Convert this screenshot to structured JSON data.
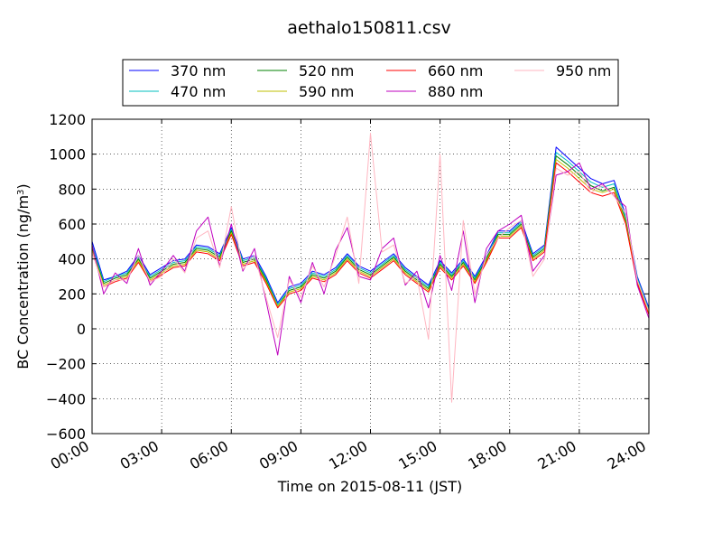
{
  "chart_data": {
    "type": "line",
    "title": "aethalo150811.csv",
    "xlabel": "Time on 2015-08-11 (JST)",
    "ylabel_main": "BC Concentration (ng/m",
    "ylabel_sup": "3",
    "ylabel_tail": ")",
    "xlim": [
      "00:00",
      "24:00"
    ],
    "ylim": [
      -600,
      1200
    ],
    "x_ticks": [
      "00:00",
      "03:00",
      "06:00",
      "09:00",
      "12:00",
      "15:00",
      "18:00",
      "21:00",
      "24:00"
    ],
    "y_ticks": [
      "−600",
      "−400",
      "−200",
      "0",
      "200",
      "400",
      "600",
      "800",
      "1000",
      "1200"
    ],
    "grid": true,
    "legend_position": "top",
    "x_hours": [
      0,
      0.5,
      1,
      1.5,
      2,
      2.5,
      3,
      3.5,
      4,
      4.5,
      5,
      5.5,
      6,
      6.5,
      7,
      7.5,
      8,
      8.5,
      9,
      9.5,
      10,
      10.5,
      11,
      11.5,
      12,
      12.5,
      13,
      13.5,
      14,
      14.5,
      15,
      15.5,
      16,
      16.5,
      17,
      17.5,
      18,
      18.5,
      19,
      19.5,
      20,
      20.5,
      21,
      21.5,
      22,
      22.5,
      23,
      23.5,
      24
    ],
    "series": [
      {
        "name": "370 nm",
        "color": "#0000ff",
        "values": [
          500,
          280,
          300,
          330,
          420,
          310,
          350,
          390,
          400,
          480,
          470,
          430,
          580,
          400,
          420,
          300,
          150,
          240,
          260,
          330,
          310,
          350,
          430,
          360,
          330,
          380,
          430,
          350,
          300,
          250,
          390,
          320,
          400,
          300,
          420,
          560,
          560,
          620,
          430,
          480,
          1040,
          980,
          920,
          860,
          830,
          850,
          650,
          300,
          120
        ]
      },
      {
        "name": "470 nm",
        "color": "#00bfbf",
        "values": [
          480,
          270,
          300,
          320,
          410,
          300,
          340,
          380,
          390,
          470,
          460,
          420,
          570,
          390,
          410,
          290,
          140,
          230,
          250,
          320,
          300,
          340,
          420,
          350,
          320,
          370,
          420,
          340,
          290,
          240,
          380,
          310,
          390,
          290,
          410,
          550,
          550,
          610,
          420,
          470,
          1010,
          960,
          900,
          840,
          810,
          830,
          640,
          290,
          110
        ]
      },
      {
        "name": "520 nm",
        "color": "#008000",
        "values": [
          460,
          260,
          290,
          310,
          400,
          290,
          330,
          370,
          380,
          460,
          450,
          410,
          560,
          380,
          400,
          280,
          130,
          220,
          240,
          310,
          290,
          330,
          410,
          340,
          310,
          360,
          410,
          330,
          280,
          230,
          370,
          300,
          380,
          280,
          400,
          540,
          540,
          600,
          410,
          460,
          990,
          940,
          880,
          820,
          790,
          810,
          620,
          280,
          100
        ]
      },
      {
        "name": "590 nm",
        "color": "#bfbf00",
        "values": [
          450,
          250,
          280,
          300,
          390,
          280,
          320,
          360,
          370,
          450,
          440,
          400,
          550,
          370,
          390,
          270,
          130,
          210,
          230,
          300,
          280,
          320,
          400,
          330,
          300,
          350,
          400,
          320,
          270,
          220,
          360,
          290,
          370,
          270,
          390,
          530,
          530,
          590,
          400,
          450,
          970,
          920,
          860,
          800,
          780,
          800,
          610,
          270,
          90
        ]
      },
      {
        "name": "660 nm",
        "color": "#ff0000",
        "values": [
          440,
          240,
          270,
          290,
          380,
          270,
          310,
          350,
          360,
          440,
          430,
          390,
          540,
          360,
          380,
          260,
          120,
          200,
          220,
          290,
          270,
          310,
          390,
          320,
          290,
          340,
          390,
          310,
          260,
          210,
          350,
          280,
          360,
          260,
          380,
          520,
          520,
          580,
          390,
          440,
          950,
          900,
          840,
          780,
          760,
          780,
          600,
          260,
          80
        ]
      },
      {
        "name": "880 nm",
        "color": "#bf00bf",
        "values": [
          480,
          200,
          320,
          260,
          460,
          250,
          330,
          420,
          330,
          560,
          640,
          360,
          600,
          330,
          460,
          160,
          -150,
          300,
          150,
          380,
          200,
          450,
          580,
          300,
          280,
          460,
          520,
          250,
          330,
          120,
          420,
          220,
          560,
          150,
          460,
          560,
          600,
          650,
          330,
          420,
          880,
          900,
          950,
          800,
          830,
          760,
          700,
          250,
          60
        ]
      },
      {
        "name": "950 nm",
        "color": "#ffb6c1",
        "values": [
          440,
          240,
          280,
          280,
          420,
          270,
          300,
          400,
          320,
          520,
          560,
          350,
          700,
          340,
          420,
          180,
          -50,
          280,
          180,
          360,
          240,
          420,
          640,
          260,
          1120,
          440,
          480,
          260,
          300,
          -60,
          1000,
          -420,
          620,
          200,
          420,
          520,
          580,
          620,
          300,
          400,
          920,
          880,
          900,
          780,
          820,
          760,
          660,
          280,
          100
        ]
      }
    ]
  }
}
